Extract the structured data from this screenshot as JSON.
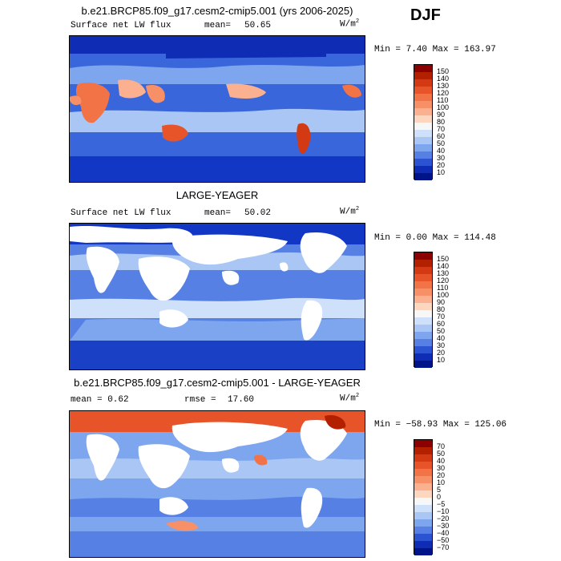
{
  "season": "DJF",
  "panels": [
    {
      "title": "b.e21.BRCP85.f09_g17.cesm2-cmip5.001 (yrs 2006-2025)",
      "left_label": "Surface net LW flux",
      "mean_label": "mean=",
      "mean_value": "50.65",
      "unit": "W/m",
      "unit_sup": "2",
      "minmax": "Min =    7.40 Max = 163.97",
      "colorbar": {
        "labels": [
          "150",
          "140",
          "130",
          "120",
          "110",
          "100",
          "90",
          "80",
          "70",
          "60",
          "50",
          "40",
          "30",
          "20",
          "10"
        ],
        "colors": [
          "#8b0000",
          "#b22000",
          "#d33a14",
          "#e7542a",
          "#f27346",
          "#f79066",
          "#fbb18f",
          "#fdd6c0",
          "#f7f7f7",
          "#cfe0fb",
          "#a9c6f5",
          "#7ea6ee",
          "#5680e3",
          "#2c53d2",
          "#0f2cb5",
          "#001489"
        ]
      }
    },
    {
      "title": "LARGE-YEAGER",
      "left_label": "Surface net LW flux",
      "mean_label": "mean=",
      "mean_value": "50.02",
      "unit": "W/m",
      "unit_sup": "2",
      "minmax": "Min =    0.00 Max = 114.48",
      "colorbar": {
        "labels": [
          "150",
          "140",
          "130",
          "120",
          "110",
          "100",
          "90",
          "80",
          "70",
          "60",
          "50",
          "40",
          "30",
          "20",
          "10"
        ],
        "colors": [
          "#8b0000",
          "#b22000",
          "#d33a14",
          "#e7542a",
          "#f27346",
          "#f79066",
          "#fbb18f",
          "#fdd6c0",
          "#f7f7f7",
          "#cfe0fb",
          "#a9c6f5",
          "#7ea6ee",
          "#5680e3",
          "#2c53d2",
          "#0f2cb5",
          "#001489"
        ]
      }
    },
    {
      "title": "b.e21.BRCP85.f09_g17.cesm2-cmip5.001 - LARGE-YEAGER",
      "left_label": "mean =    0.62",
      "mean_label": "rmse =",
      "mean_value": "17.60",
      "unit": "W/m",
      "unit_sup": "2",
      "minmax": "Min = −58.93 Max = 125.06",
      "colorbar": {
        "labels": [
          "70",
          "50",
          "40",
          "30",
          "20",
          "10",
          "5",
          "0",
          "−5",
          "−10",
          "−20",
          "−30",
          "−40",
          "−50",
          "−70"
        ],
        "colors": [
          "#8b0000",
          "#b22000",
          "#d33a14",
          "#e7542a",
          "#f27346",
          "#f79066",
          "#fbb18f",
          "#fdd6c0",
          "#f7f7f7",
          "#cfe0fb",
          "#a9c6f5",
          "#7ea6ee",
          "#5680e3",
          "#2c53d2",
          "#0f2cb5",
          "#001489"
        ]
      }
    }
  ]
}
